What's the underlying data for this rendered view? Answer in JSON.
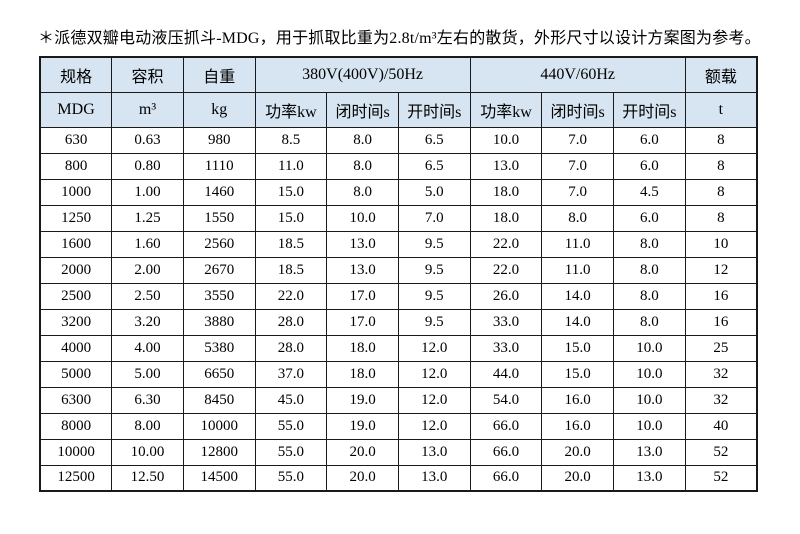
{
  "note": "＊派德双瓣电动液压抓斗-MDG，用于抓取比重为2.8t/m³左右的散货，外形尺寸以设计方案图为参考。",
  "table": {
    "header_groups": {
      "spec": "规格",
      "capacity": "容积",
      "self_weight": "自重",
      "power_50hz": "380V(400V)/50Hz",
      "power_60hz": "440V/60Hz",
      "rated_load": "额载"
    },
    "subheaders": {
      "spec": "MDG",
      "capacity": "m³",
      "self_weight": "kg",
      "power_kw_50": "功率kw",
      "close_time_50": "闭时间s",
      "open_time_50": "开时间s",
      "power_kw_60": "功率kw",
      "close_time_60": "闭时间s",
      "open_time_60": "开时间s",
      "rated_load": "t"
    },
    "rows": [
      [
        "630",
        "0.63",
        "980",
        "8.5",
        "8.0",
        "6.5",
        "10.0",
        "7.0",
        "6.0",
        "8"
      ],
      [
        "800",
        "0.80",
        "1110",
        "11.0",
        "8.0",
        "6.5",
        "13.0",
        "7.0",
        "6.0",
        "8"
      ],
      [
        "1000",
        "1.00",
        "1460",
        "15.0",
        "8.0",
        "5.0",
        "18.0",
        "7.0",
        "4.5",
        "8"
      ],
      [
        "1250",
        "1.25",
        "1550",
        "15.0",
        "10.0",
        "7.0",
        "18.0",
        "8.0",
        "6.0",
        "8"
      ],
      [
        "1600",
        "1.60",
        "2560",
        "18.5",
        "13.0",
        "9.5",
        "22.0",
        "11.0",
        "8.0",
        "10"
      ],
      [
        "2000",
        "2.00",
        "2670",
        "18.5",
        "13.0",
        "9.5",
        "22.0",
        "11.0",
        "8.0",
        "12"
      ],
      [
        "2500",
        "2.50",
        "3550",
        "22.0",
        "17.0",
        "9.5",
        "26.0",
        "14.0",
        "8.0",
        "16"
      ],
      [
        "3200",
        "3.20",
        "3880",
        "28.0",
        "17.0",
        "9.5",
        "33.0",
        "14.0",
        "8.0",
        "16"
      ],
      [
        "4000",
        "4.00",
        "5380",
        "28.0",
        "18.0",
        "12.0",
        "33.0",
        "15.0",
        "10.0",
        "25"
      ],
      [
        "5000",
        "5.00",
        "6650",
        "37.0",
        "18.0",
        "12.0",
        "44.0",
        "15.0",
        "10.0",
        "32"
      ],
      [
        "6300",
        "6.30",
        "8450",
        "45.0",
        "19.0",
        "12.0",
        "54.0",
        "16.0",
        "10.0",
        "32"
      ],
      [
        "8000",
        "8.00",
        "10000",
        "55.0",
        "19.0",
        "12.0",
        "66.0",
        "16.0",
        "10.0",
        "40"
      ],
      [
        "10000",
        "10.00",
        "12800",
        "55.0",
        "20.0",
        "13.0",
        "66.0",
        "20.0",
        "13.0",
        "52"
      ],
      [
        "12500",
        "12.50",
        "14500",
        "55.0",
        "20.0",
        "13.0",
        "66.0",
        "20.0",
        "13.0",
        "52"
      ]
    ]
  },
  "colors": {
    "header_bg": "#d6e5f1",
    "border": "#1a1a1a",
    "text": "#000000",
    "page_bg": "#ffffff"
  }
}
